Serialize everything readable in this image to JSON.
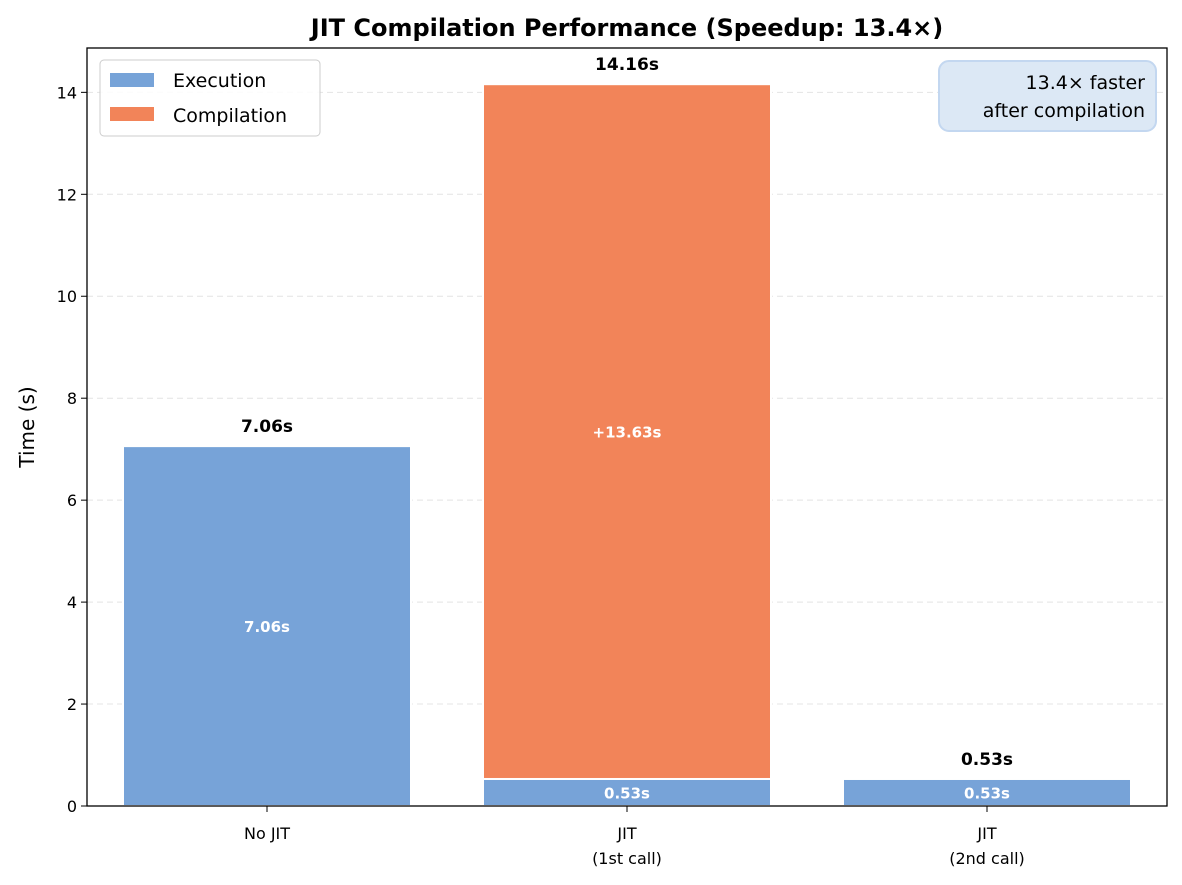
{
  "chart_data": {
    "type": "bar",
    "stacked": true,
    "title": "JIT Compilation Performance (Speedup: 13.4×)",
    "xlabel": "",
    "ylabel": "Time (s)",
    "ylim": [
      0,
      14.87
    ],
    "yticks": [
      0,
      2,
      4,
      6,
      8,
      10,
      12,
      14
    ],
    "grid": "y dashed",
    "categories": [
      "No JIT",
      "JIT\n(1st call)",
      "JIT\n(2nd call)"
    ],
    "series": [
      {
        "name": "Execution",
        "color": "#77a3d8",
        "values": [
          7.06,
          0.53,
          0.53
        ],
        "labels": [
          "7.06s",
          "0.53s",
          "0.53s"
        ]
      },
      {
        "name": "Compilation",
        "color": "#f28459",
        "values": [
          0,
          13.63,
          0
        ],
        "labels": [
          "",
          "+13.63s",
          ""
        ]
      }
    ],
    "totals": [
      "7.06s",
      "14.16s",
      "0.53s"
    ],
    "total_values": [
      7.06,
      14.16,
      0.53
    ],
    "legend": {
      "placement": "top-left",
      "entries": [
        "Execution",
        "Compilation"
      ]
    },
    "annotation": {
      "text": [
        "13.4× faster",
        "after compilation"
      ],
      "placement": "top-right",
      "background": "#dce8f5",
      "border": "#c3d7f0"
    }
  }
}
